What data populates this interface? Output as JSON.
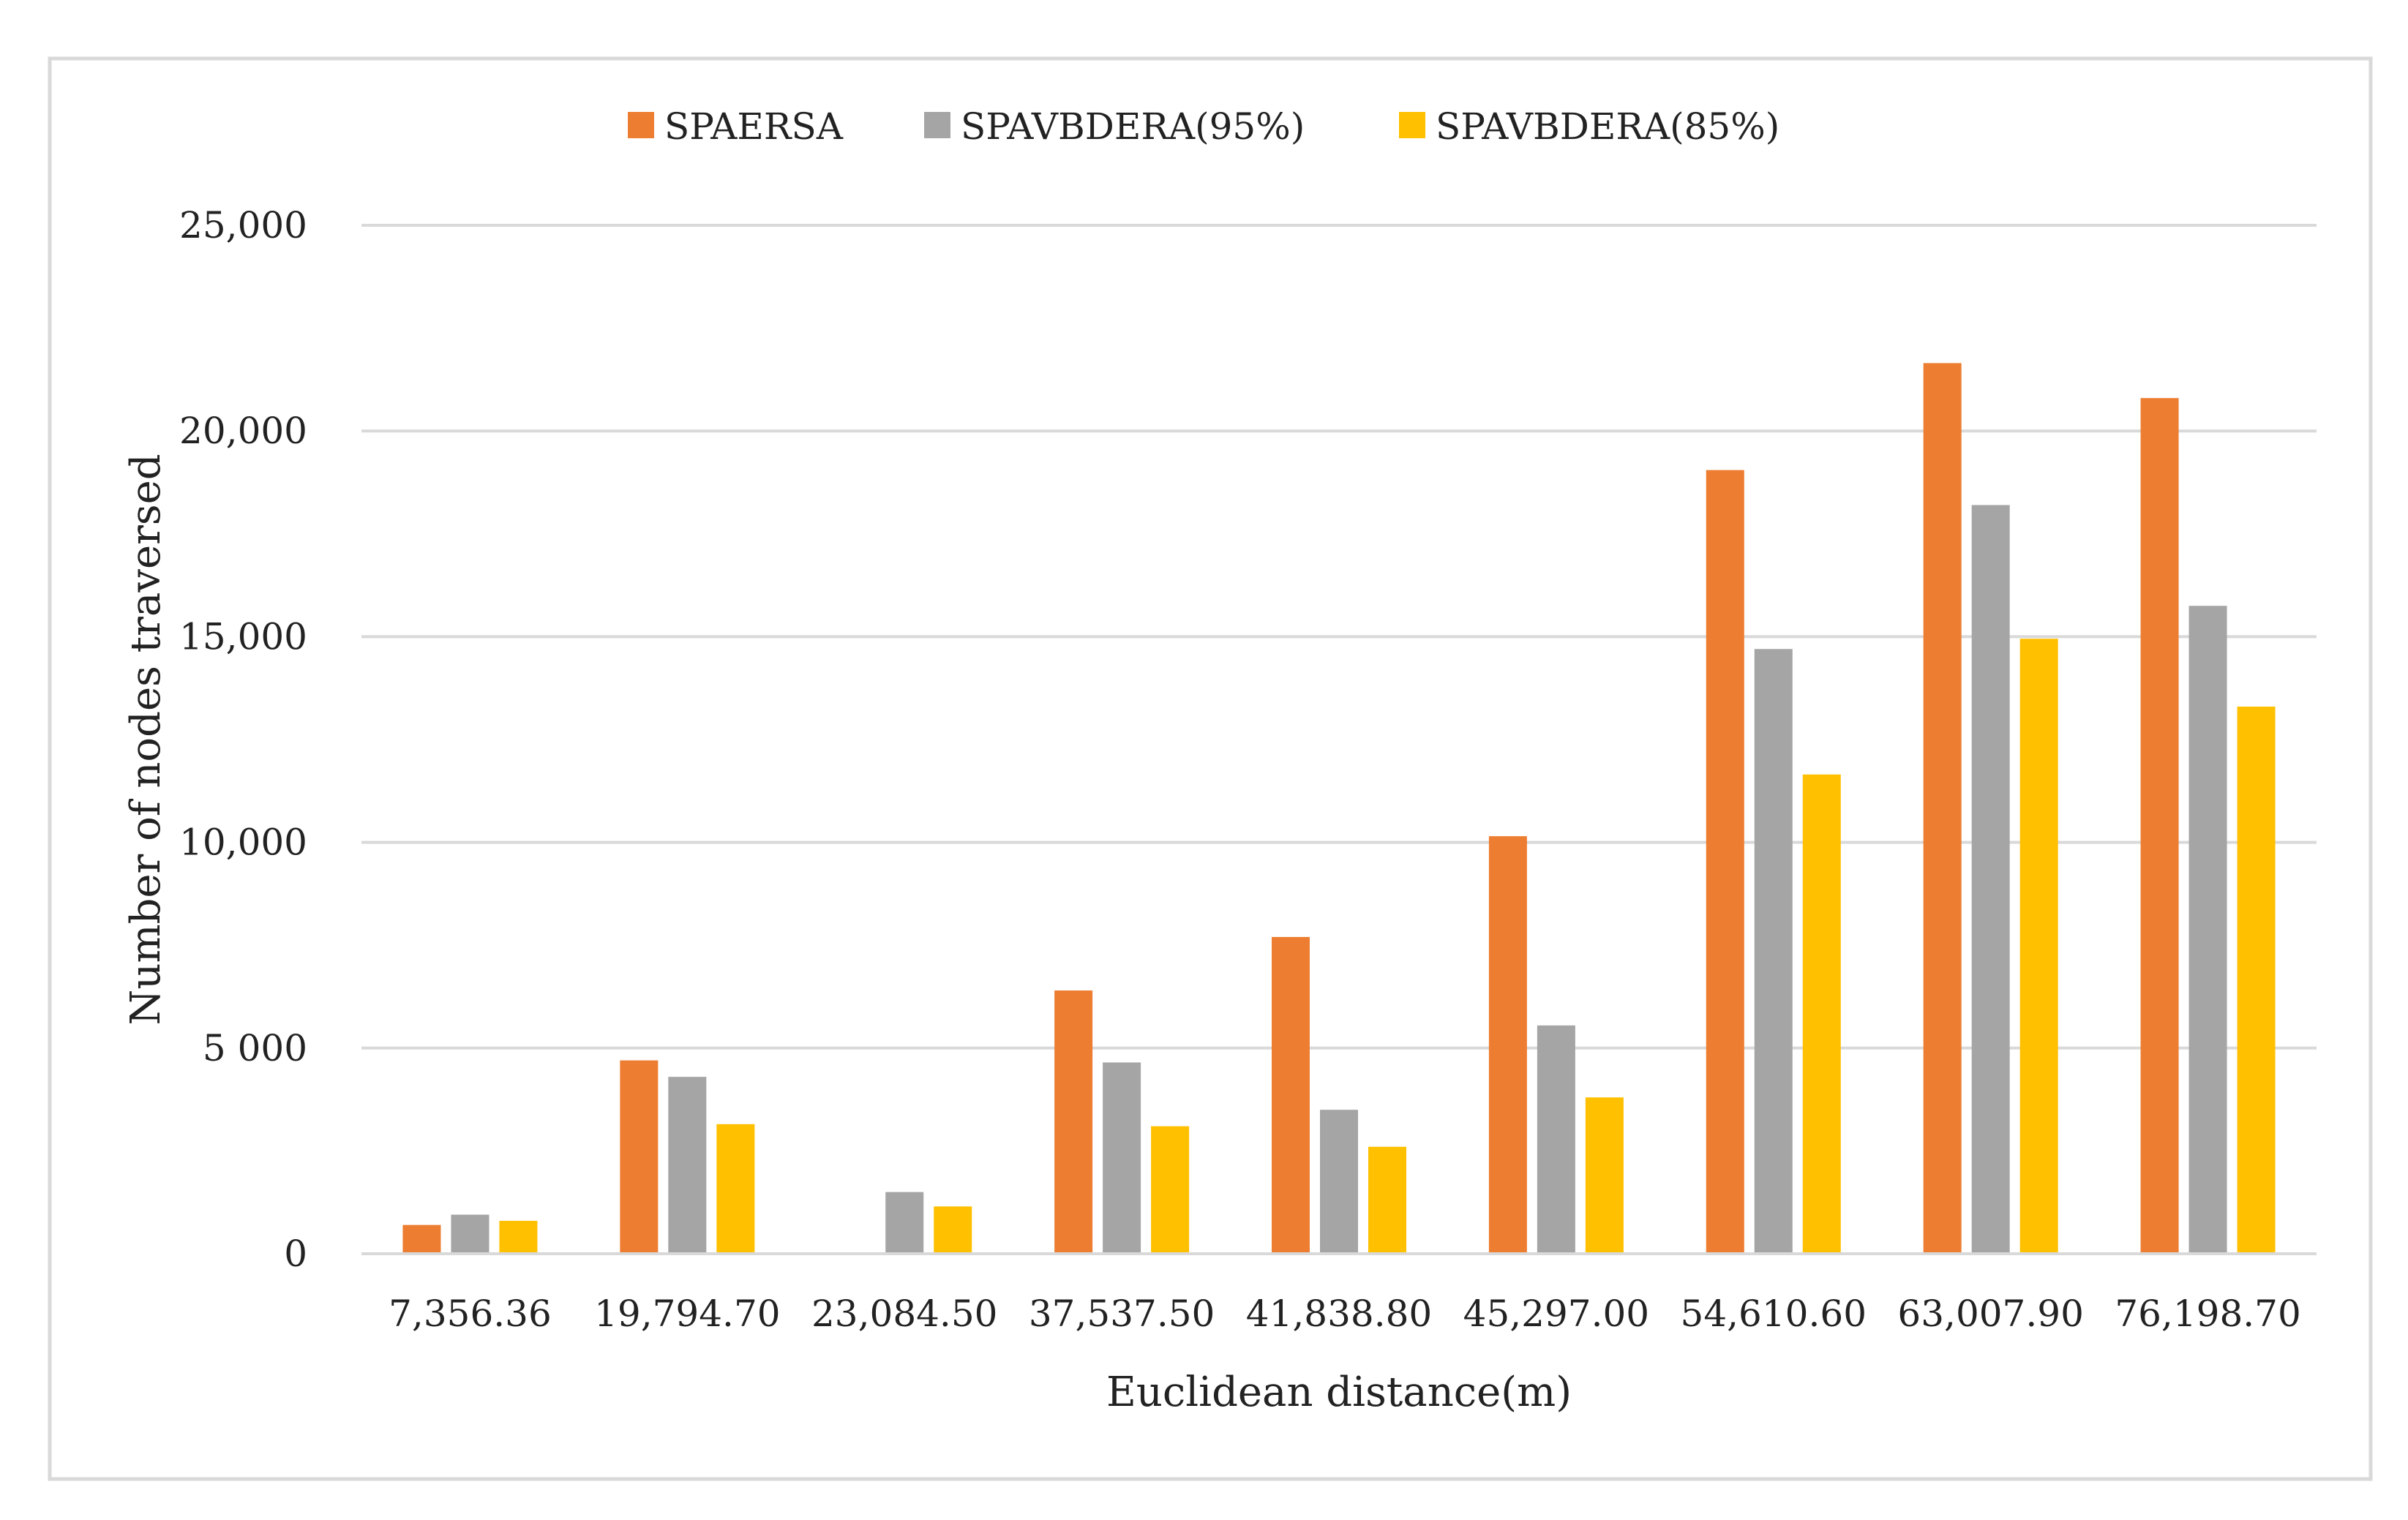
{
  "chart_data": {
    "type": "bar",
    "title": "",
    "xlabel": "Euclidean distance(m)",
    "ylabel": "Number of nodes traversed",
    "categories": [
      "7,356.36",
      "19,794.70",
      "23,084.50",
      "37,537.50",
      "41,838.80",
      "45,297.00",
      "54,610.60",
      "63,007.90",
      "76,198.70"
    ],
    "series": [
      {
        "name": "SPAERSA",
        "color": "#ED7D31",
        "values": [
          700,
          4700,
          0,
          6400,
          7700,
          10150,
          19050,
          21650,
          20800
        ]
      },
      {
        "name": "SPAVBDERA(95%)",
        "color": "#A5A5A5",
        "values": [
          950,
          4300,
          1500,
          4650,
          3500,
          5550,
          14700,
          18200,
          15750
        ]
      },
      {
        "name": "SPAVBDERA(85%)",
        "color": "#FFC000",
        "values": [
          800,
          3150,
          1150,
          3100,
          2600,
          3800,
          11650,
          14950,
          13300
        ]
      }
    ],
    "ylim": [
      0,
      25000
    ],
    "yticks": [
      0,
      5000,
      10000,
      15000,
      20000,
      25000
    ],
    "ytick_labels": [
      "0",
      "5 000",
      "10,000",
      "15,000",
      "20,000",
      "25,000"
    ],
    "grid": true,
    "legend_position": "top-center"
  }
}
